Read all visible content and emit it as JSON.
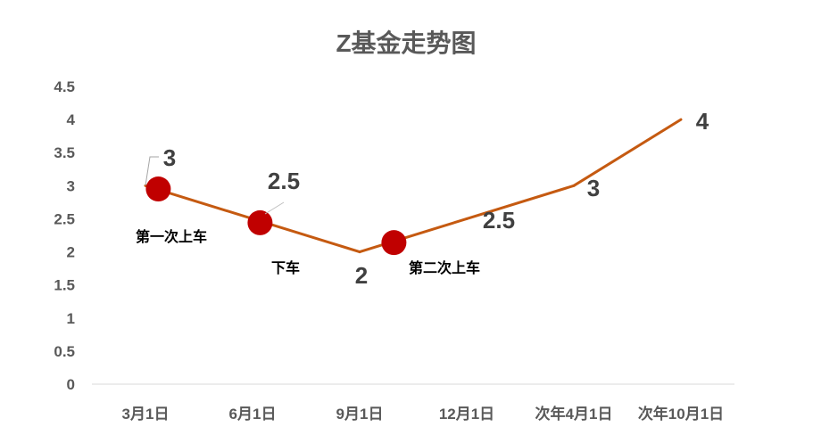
{
  "chart_data": {
    "type": "line",
    "title": "Z基金走势图",
    "categories": [
      "3月1日",
      "6月1日",
      "9月1日",
      "12月1日",
      "次年4月1日",
      "次年10月1日"
    ],
    "series": [
      {
        "values": [
          3,
          2.5,
          2,
          2.5,
          3,
          4
        ],
        "color": "#C55A11"
      }
    ],
    "data_labels": [
      "3",
      "2.5",
      "2",
      "2.5",
      "3",
      "4"
    ],
    "markers": [
      {
        "x": 0.12,
        "y": 2.95,
        "label": "第一次上车"
      },
      {
        "x": 1.07,
        "y": 2.44,
        "label": "下车"
      },
      {
        "x": 2.32,
        "y": 2.14,
        "label": "第二次上车"
      }
    ],
    "marker_color": "#C00000",
    "ylim": [
      0,
      4.5
    ],
    "yticks": [
      "0",
      "0.5",
      "1",
      "1.5",
      "2",
      "2.5",
      "3",
      "3.5",
      "4",
      "4.5"
    ],
    "xlabel": "",
    "ylabel": "",
    "grid": false,
    "legend": "none"
  }
}
